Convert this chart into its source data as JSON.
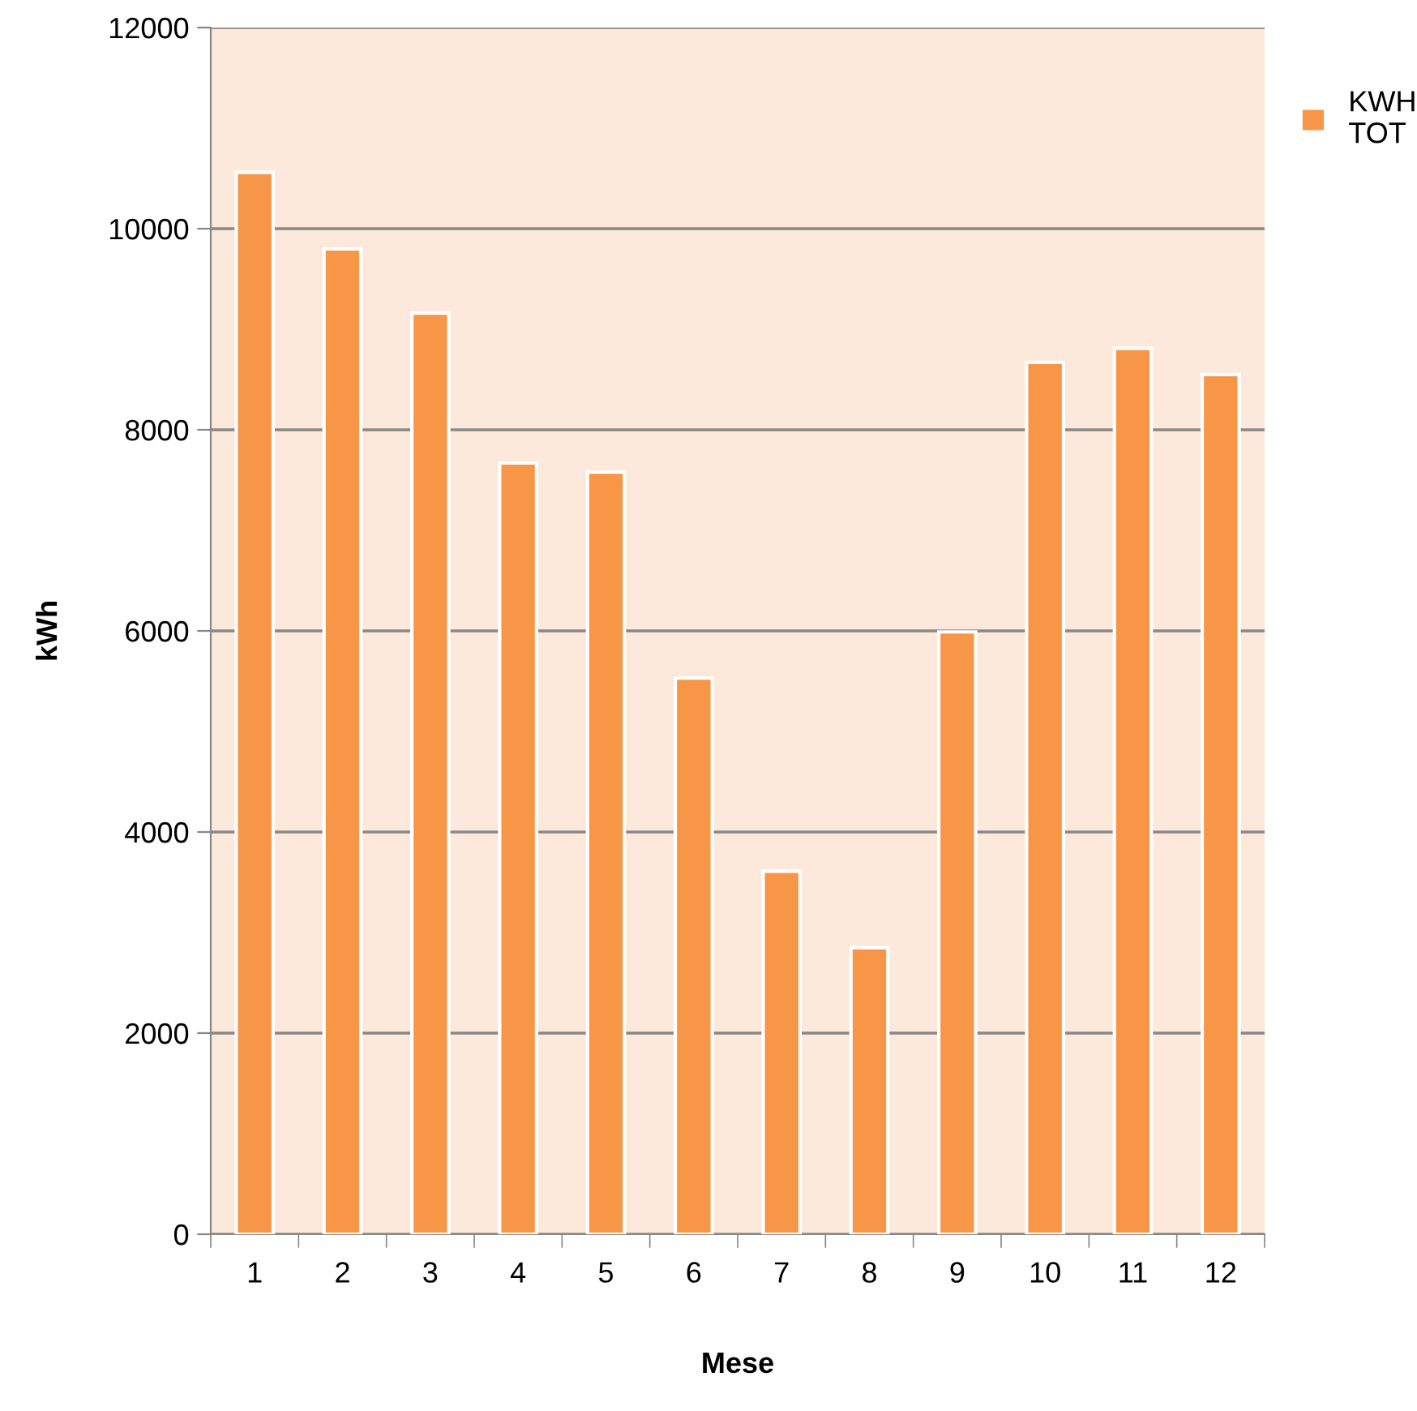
{
  "chart_data": {
    "type": "bar",
    "xlabel": "Mese",
    "ylabel": "kWh",
    "categories": [
      "1",
      "2",
      "3",
      "4",
      "5",
      "6",
      "7",
      "8",
      "9",
      "10",
      "11",
      "12"
    ],
    "series": [
      {
        "name": "KWH\nTOT",
        "color": "#f79646",
        "values": [
          10560,
          9800,
          9160,
          7670,
          7580,
          5530,
          3610,
          2850,
          5990,
          8670,
          8810,
          8550
        ]
      }
    ],
    "ylim": [
      0,
      12000
    ],
    "yticks": [
      0,
      2000,
      4000,
      6000,
      8000,
      10000,
      12000
    ],
    "grid": "y",
    "legend": "top right"
  }
}
